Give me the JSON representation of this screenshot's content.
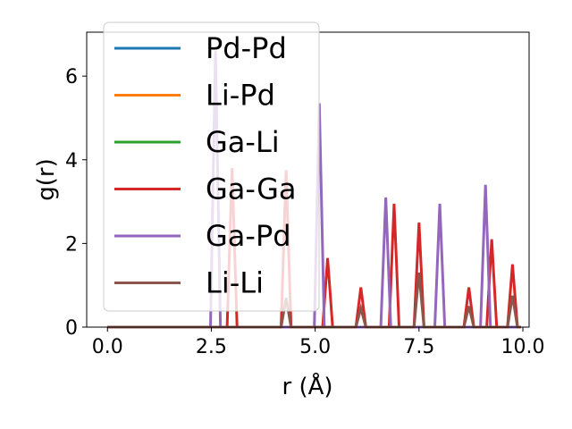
{
  "chart_data": {
    "type": "line",
    "xlabel": "r (Å)",
    "ylabel": "g(r)",
    "xlim": [
      -0.5,
      10.15
    ],
    "ylim": [
      0,
      7.05
    ],
    "x_ticks": [
      0.0,
      2.5,
      5.0,
      7.5,
      10.0
    ],
    "x_tick_labels": [
      "0.0",
      "2.5",
      "5.0",
      "7.5",
      "10.0"
    ],
    "y_ticks": [
      0,
      2,
      4,
      6
    ],
    "y_tick_labels": [
      "0",
      "2",
      "4",
      "6"
    ],
    "grid": false,
    "legend_position": "top-left",
    "peak_halfwidth": 0.12,
    "series": [
      {
        "name": "Pd-Pd",
        "color": "#1f77b4",
        "peaks": []
      },
      {
        "name": "Li-Pd",
        "color": "#ff7f0e",
        "peaks": []
      },
      {
        "name": "Ga-Li",
        "color": "#2ca02c",
        "peaks": []
      },
      {
        "name": "Ga-Ga",
        "color": "#d62728",
        "peaks": [
          [
            3.0,
            3.8
          ],
          [
            4.3,
            3.75
          ],
          [
            5.3,
            1.65
          ],
          [
            6.1,
            0.95
          ],
          [
            6.9,
            2.95
          ],
          [
            7.5,
            2.5
          ],
          [
            8.7,
            0.95
          ],
          [
            9.25,
            2.1
          ],
          [
            9.75,
            1.5
          ]
        ]
      },
      {
        "name": "Ga-Pd",
        "color": "#9467bd",
        "peaks": [
          [
            2.6,
            6.6
          ],
          [
            5.1,
            5.35
          ],
          [
            6.7,
            3.1
          ],
          [
            8.0,
            2.95
          ],
          [
            9.1,
            3.4
          ]
        ]
      },
      {
        "name": "Li-Li",
        "color": "#8c564b",
        "peaks": [
          [
            4.3,
            0.7
          ],
          [
            6.1,
            0.45
          ],
          [
            7.5,
            1.3
          ],
          [
            8.7,
            0.5
          ],
          [
            9.75,
            0.75
          ]
        ]
      }
    ]
  }
}
